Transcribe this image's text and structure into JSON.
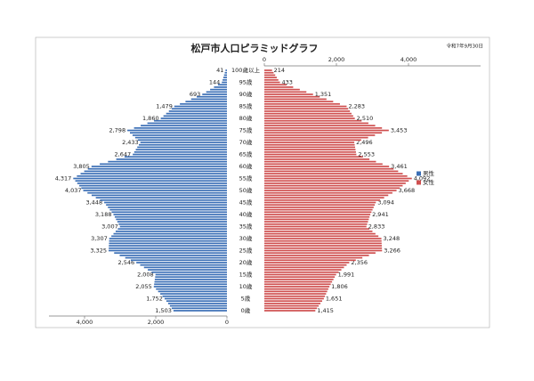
{
  "chart_data": {
    "type": "pyramid",
    "title": "松戸市人口ピラミッドグラフ",
    "annotation": "令和7年9月30日",
    "categories": [
      "0歳",
      null,
      null,
      null,
      null,
      "5歳",
      null,
      null,
      null,
      null,
      "10歳",
      null,
      null,
      null,
      null,
      "15歳",
      null,
      null,
      null,
      null,
      "20歳",
      null,
      null,
      null,
      null,
      "25歳",
      null,
      null,
      null,
      null,
      "30歳",
      null,
      null,
      null,
      null,
      "35歳",
      null,
      null,
      null,
      null,
      "40歳",
      null,
      null,
      null,
      null,
      "45歳",
      null,
      null,
      null,
      null,
      "50歳",
      null,
      null,
      null,
      null,
      "55歳",
      null,
      null,
      null,
      null,
      "60歳",
      null,
      null,
      null,
      null,
      "65歳",
      null,
      null,
      null,
      null,
      "70歳",
      null,
      null,
      null,
      null,
      "75歳",
      null,
      null,
      null,
      null,
      "80歳",
      null,
      null,
      null,
      null,
      "85歳",
      null,
      null,
      null,
      null,
      "90歳",
      null,
      null,
      null,
      null,
      "95歳",
      null,
      null,
      null,
      null,
      "100歳以上"
    ],
    "xlim": [
      0,
      5000
    ],
    "xticks": [
      {
        "value": 4000,
        "label": "4,000"
      },
      {
        "value": 2000,
        "label": "2,000"
      },
      0
    ],
    "x2lim": [
      0,
      6000
    ],
    "x2ticks": [
      0,
      {
        "value": 2000,
        "label": "2,000"
      },
      {
        "value": 4000,
        "label": "4,000"
      }
    ],
    "series": [
      {
        "name": "男性",
        "color": "#3b6fb6",
        "axis": "x",
        "values": [
          1503,
          1553,
          1603,
          1652,
          1702,
          1752,
          1813,
          1873,
          1934,
          1994,
          2055,
          2046,
          2036,
          2027,
          2017,
          2008,
          2116,
          2223,
          2331,
          2438,
          2546,
          2702,
          2858,
          3013,
          3169,
          3325,
          3321,
          3318,
          3314,
          3311,
          3307,
          3247,
          3187,
          3127,
          3067,
          3007,
          3043,
          3079,
          3116,
          3152,
          3188,
          3240,
          3292,
          3344,
          3396,
          3448,
          3566,
          3684,
          3801,
          3919,
          4037,
          4093,
          4149,
          4205,
          4261,
          4317,
          4215,
          4112,
          4010,
          3907,
          3805,
          3573,
          3342,
          3110,
          2879,
          2647,
          2604,
          2561,
          2519,
          2476,
          2433,
          2506,
          2579,
          2652,
          2725,
          2798,
          2610,
          2423,
          2235,
          2048,
          1860,
          1784,
          1708,
          1631,
          1555,
          1479,
          1322,
          1165,
          1007,
          850,
          693,
          583,
          473,
          364,
          254,
          144,
          123,
          103,
          82,
          62,
          41
        ],
        "value_labels": [
          "1,503",
          null,
          null,
          null,
          null,
          "1,752",
          null,
          null,
          null,
          null,
          "2,055",
          null,
          null,
          null,
          null,
          "2,008",
          null,
          null,
          null,
          null,
          "2,546",
          null,
          null,
          null,
          null,
          "3,325",
          null,
          null,
          null,
          null,
          "3,307",
          null,
          null,
          null,
          null,
          "3,007",
          null,
          null,
          null,
          null,
          "3,188",
          null,
          null,
          null,
          null,
          "3,448",
          null,
          null,
          null,
          null,
          "4,037",
          null,
          null,
          null,
          null,
          "4,317",
          null,
          null,
          null,
          null,
          "3,805",
          null,
          null,
          null,
          null,
          "2,647",
          null,
          null,
          null,
          null,
          "2,433",
          null,
          null,
          null,
          null,
          "2,798",
          null,
          null,
          null,
          null,
          "1,860",
          null,
          null,
          null,
          null,
          "1,479",
          null,
          null,
          null,
          null,
          "693",
          null,
          null,
          null,
          null,
          "144",
          null,
          null,
          null,
          null,
          "41"
        ]
      },
      {
        "name": "女性",
        "color": "#cf4f4f",
        "axis": "x2",
        "values": [
          1415,
          1462,
          1509,
          1557,
          1604,
          1651,
          1682,
          1713,
          1744,
          1775,
          1806,
          1843,
          1880,
          1917,
          1954,
          1991,
          2064,
          2137,
          2210,
          2283,
          2356,
          2538,
          2720,
          2902,
          3084,
          3266,
          3262,
          3259,
          3255,
          3252,
          3248,
          3165,
          3082,
          2999,
          2916,
          2833,
          2855,
          2876,
          2898,
          2919,
          2941,
          2972,
          3002,
          3033,
          3063,
          3094,
          3209,
          3324,
          3438,
          3553,
          3668,
          3753,
          3838,
          3922,
          4007,
          4092,
          3966,
          3840,
          3713,
          3587,
          3461,
          3279,
          3098,
          2916,
          2735,
          2553,
          2542,
          2530,
          2519,
          2507,
          2496,
          2687,
          2879,
          3070,
          3262,
          3453,
          3264,
          3076,
          2887,
          2699,
          2510,
          2465,
          2419,
          2374,
          2328,
          2283,
          2097,
          1910,
          1724,
          1537,
          1351,
          1167,
          984,
          800,
          617,
          433,
          389,
          345,
          302,
          258,
          214
        ],
        "value_labels": [
          "1,415",
          null,
          null,
          null,
          null,
          "1,651",
          null,
          null,
          null,
          null,
          "1,806",
          null,
          null,
          null,
          null,
          "1,991",
          null,
          null,
          null,
          null,
          "2,356",
          null,
          null,
          null,
          null,
          "3,266",
          null,
          null,
          null,
          null,
          "3,248",
          null,
          null,
          null,
          null,
          "2,833",
          null,
          null,
          null,
          null,
          "2,941",
          null,
          null,
          null,
          null,
          "3,094",
          null,
          null,
          null,
          null,
          "3,668",
          null,
          null,
          null,
          null,
          "4,092",
          null,
          null,
          null,
          null,
          "3,461",
          null,
          null,
          null,
          null,
          "2,553",
          null,
          null,
          null,
          null,
          "2,496",
          null,
          null,
          null,
          null,
          "3,453",
          null,
          null,
          null,
          null,
          "2,510",
          null,
          null,
          null,
          null,
          "2,283",
          null,
          null,
          null,
          null,
          "1,351",
          null,
          null,
          null,
          null,
          "433",
          null,
          null,
          null,
          null,
          "214"
        ]
      }
    ]
  }
}
